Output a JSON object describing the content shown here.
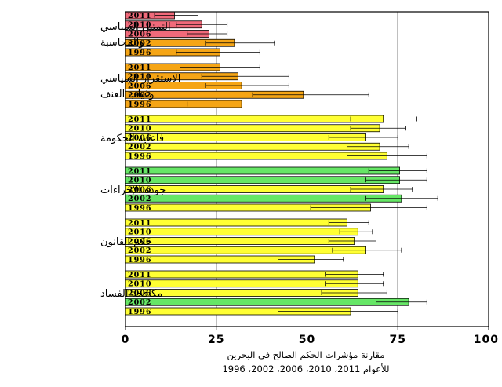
{
  "chart_data": {
    "type": "bar",
    "orientation": "horizontal",
    "caption_line1": "مقارنة مؤشرات الحكم الصالح في البحرين",
    "caption_line2": "للأعوام 2011، 2010، 2006، 2002، 1996",
    "xlim": [
      0,
      100
    ],
    "xticks": [
      "0",
      "25",
      "50",
      "75",
      "100"
    ],
    "grid": "vertical-major",
    "legend": "none",
    "colors": {
      "red": "#f06a7a",
      "orange": "#f5a515",
      "yellow": "#ffff33",
      "green": "#66e666"
    },
    "groups": [
      {
        "label_lines": [
          "التمثيل السياسي",
          "والمحاسبة"
        ],
        "bars": [
          {
            "year": "2011",
            "value": 13.5,
            "err_low": 8,
            "err_high": 20,
            "color": "red"
          },
          {
            "year": "2010",
            "value": 21,
            "err_low": 14,
            "err_high": 28,
            "color": "red"
          },
          {
            "year": "2006",
            "value": 23,
            "err_low": 17,
            "err_high": 28,
            "color": "red"
          },
          {
            "year": "2002",
            "value": 30,
            "err_low": 22,
            "err_high": 41,
            "color": "orange"
          },
          {
            "year": "1996",
            "value": 26,
            "err_low": 14,
            "err_high": 37,
            "color": "orange"
          }
        ]
      },
      {
        "label_lines": [
          "الاستقرار السياسي",
          "وغياب العنف"
        ],
        "bars": [
          {
            "year": "2011",
            "value": 26,
            "err_low": 15,
            "err_high": 37,
            "color": "orange"
          },
          {
            "year": "2010",
            "value": 31,
            "err_low": 21,
            "err_high": 45,
            "color": "orange"
          },
          {
            "year": "2006",
            "value": 32,
            "err_low": 22,
            "err_high": 45,
            "color": "orange"
          },
          {
            "year": "2002",
            "value": 49,
            "err_low": 35,
            "err_high": 67,
            "color": "orange"
          },
          {
            "year": "1996",
            "value": 32,
            "err_low": 17,
            "err_high": 50,
            "color": "orange"
          }
        ]
      },
      {
        "label_lines": [
          "فاعلية الحكومة"
        ],
        "bars": [
          {
            "year": "2011",
            "value": 71,
            "err_low": 62,
            "err_high": 80,
            "color": "yellow"
          },
          {
            "year": "2010",
            "value": 70,
            "err_low": 62,
            "err_high": 77,
            "color": "yellow"
          },
          {
            "year": "2006",
            "value": 66,
            "err_low": 56,
            "err_high": 75,
            "color": "yellow"
          },
          {
            "year": "2002",
            "value": 70,
            "err_low": 61,
            "err_high": 78,
            "color": "yellow"
          },
          {
            "year": "1996",
            "value": 72,
            "err_low": 61,
            "err_high": 83,
            "color": "yellow"
          }
        ]
      },
      {
        "label_lines": [
          "جودة الإجراءات"
        ],
        "bars": [
          {
            "year": "2011",
            "value": 75.5,
            "err_low": 67,
            "err_high": 83,
            "color": "green"
          },
          {
            "year": "2010",
            "value": 75.5,
            "err_low": 66,
            "err_high": 83,
            "color": "green"
          },
          {
            "year": "2006",
            "value": 71,
            "err_low": 62,
            "err_high": 79,
            "color": "yellow"
          },
          {
            "year": "2002",
            "value": 76,
            "err_low": 66,
            "err_high": 86,
            "color": "green"
          },
          {
            "year": "1996",
            "value": 67.5,
            "err_low": 51,
            "err_high": 83,
            "color": "yellow"
          }
        ]
      },
      {
        "label_lines": [
          "حكم القانون"
        ],
        "bars": [
          {
            "year": "2011",
            "value": 61,
            "err_low": 56,
            "err_high": 67,
            "color": "yellow"
          },
          {
            "year": "2010",
            "value": 64,
            "err_low": 59,
            "err_high": 68,
            "color": "yellow"
          },
          {
            "year": "2006",
            "value": 63,
            "err_low": 56,
            "err_high": 69,
            "color": "yellow"
          },
          {
            "year": "2002",
            "value": 66,
            "err_low": 57,
            "err_high": 76,
            "color": "yellow"
          },
          {
            "year": "1996",
            "value": 52,
            "err_low": 42,
            "err_high": 60,
            "color": "yellow"
          }
        ]
      },
      {
        "label_lines": [
          "مكافحة الفساد"
        ],
        "bars": [
          {
            "year": "2011",
            "value": 64,
            "err_low": 55,
            "err_high": 71,
            "color": "yellow"
          },
          {
            "year": "2010",
            "value": 64,
            "err_low": 55,
            "err_high": 71,
            "color": "yellow"
          },
          {
            "year": "2006",
            "value": 64,
            "err_low": 54,
            "err_high": 72,
            "color": "yellow"
          },
          {
            "year": "2002",
            "value": 78,
            "err_low": 69,
            "err_high": 83,
            "color": "green"
          },
          {
            "year": "1996",
            "value": 62,
            "err_low": 42,
            "err_high": 75,
            "color": "yellow"
          }
        ]
      }
    ]
  }
}
